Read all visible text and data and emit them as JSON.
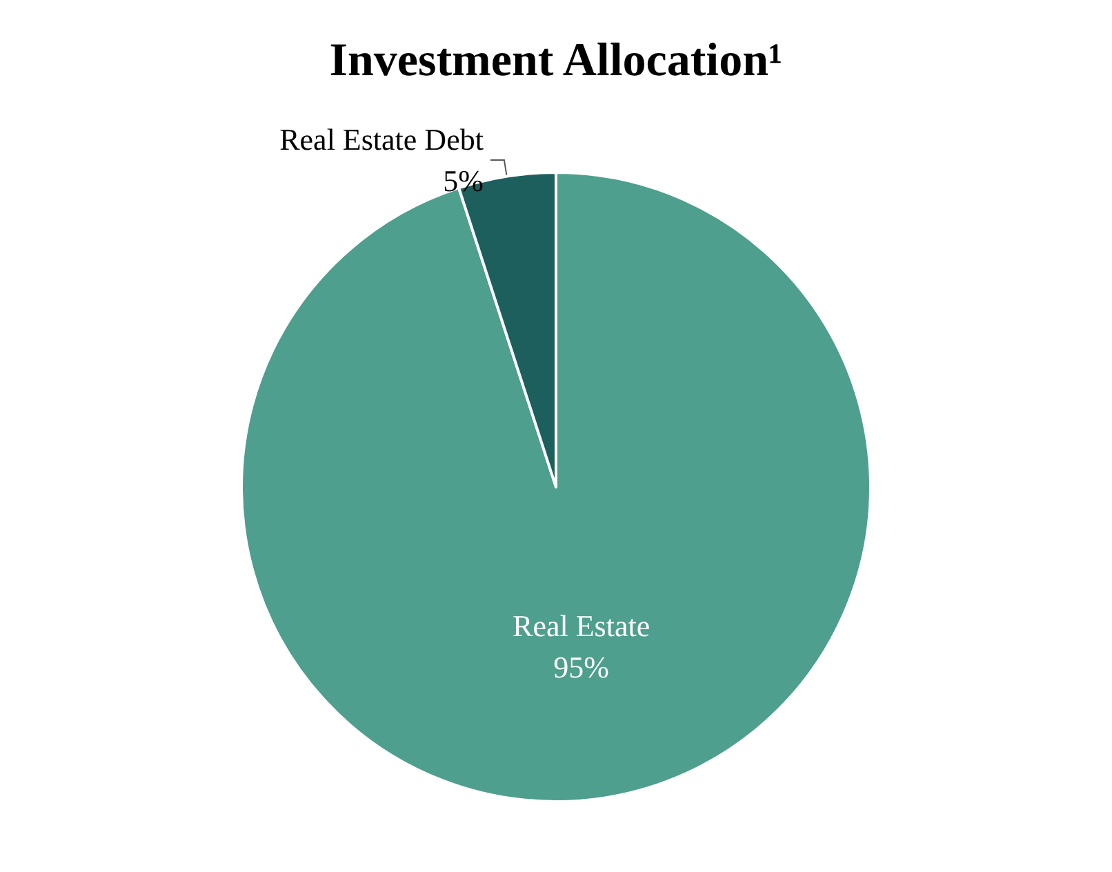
{
  "chart_data": {
    "type": "pie",
    "title": "Investment Allocation¹",
    "categories": [
      "Real Estate",
      "Real Estate Debt"
    ],
    "values": [
      95,
      5
    ],
    "colors": [
      "#4e9f8d",
      "#1d5f5d"
    ],
    "value_labels": [
      "95%",
      "5%"
    ],
    "legend": false
  }
}
